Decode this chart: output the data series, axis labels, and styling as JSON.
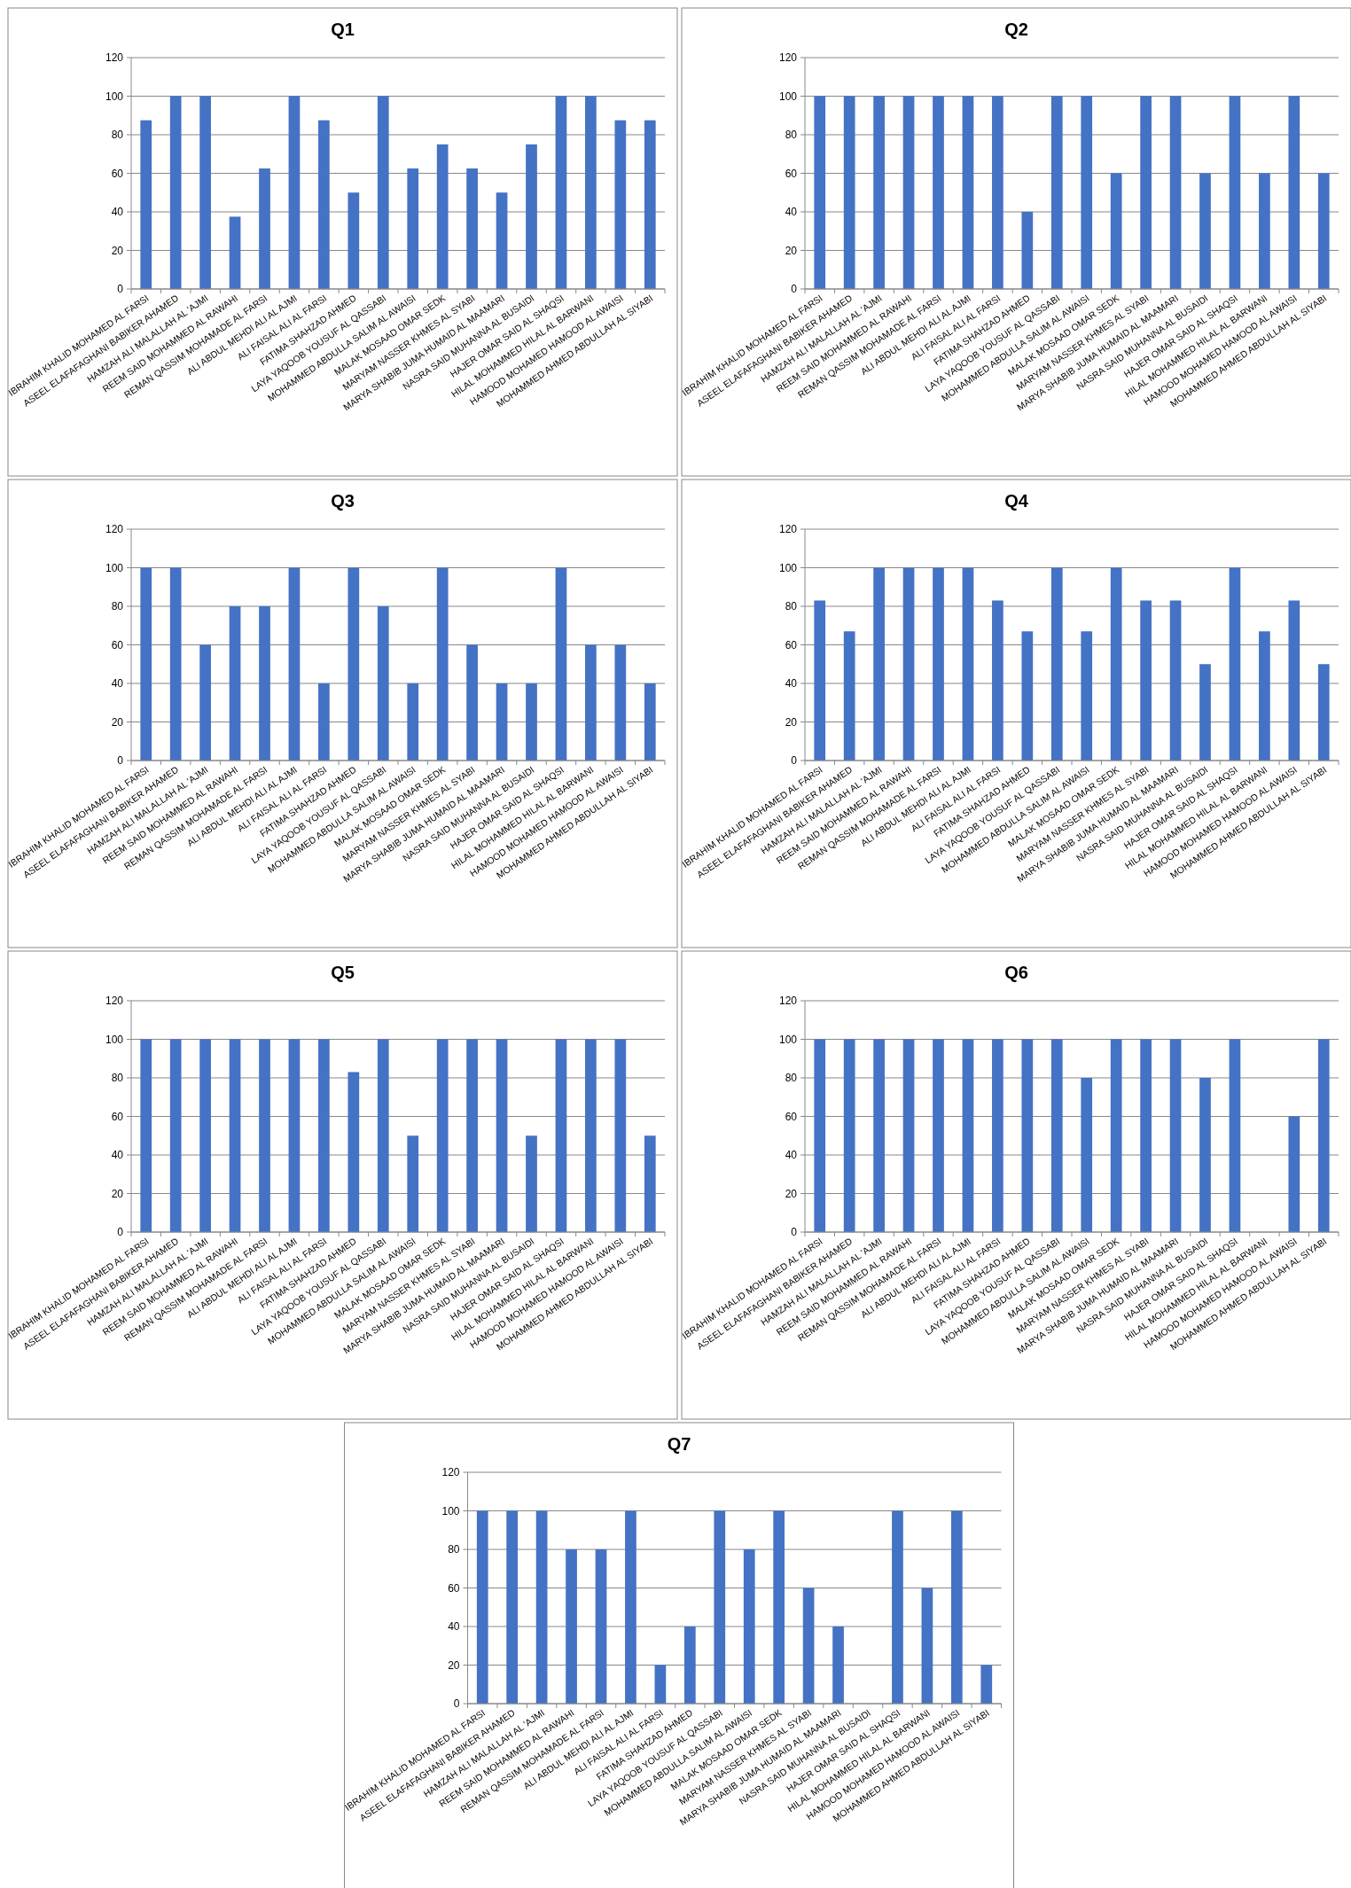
{
  "chart_data": [
    {
      "type": "bar",
      "title": "Q1",
      "categories": [
        "IBRAHIM KHALID MOHAMED AL FARSI",
        "ASEEL ELAFAFAGHANI BABIKER AHAMED",
        "HAMZAH ALI MALALLAH AL 'AJMI",
        "REEM SAID MOHAMMED AL RAWAHI",
        "REMAN QASSIM MOHAMADE AL FARSI",
        "ALI ABDUL MEHDI ALI AL AJMI",
        "ALI FAISAL ALI AL FARSI",
        "FATIMA SHAHZAD AHMED",
        "LAYA YAQOOB YOUSUF AL QASSABI",
        "MOHAMMED ABDULLA SALIM AL AWAISI",
        "MALAK MOSAAD OMAR SEDK",
        "MARYAM NASSER KHMES AL SYABI",
        "MARYA SHABIB JUMA HUMAID AL MAAMARI",
        "NASRA SAID MUHANNA AL BUSAIDI",
        "HAJER OMAR SAID AL SHAQSI",
        "HILAL MOHAMMED HILAL AL BARWANI",
        "HAMOOD MOHAMED HAMOOD AL AWAISI",
        "MOHAMMED AHMED ABDULLAH AL SIYABI"
      ],
      "values": [
        87.5,
        100,
        100,
        37.5,
        62.5,
        100,
        87.5,
        50,
        100,
        62.5,
        75,
        62.5,
        50,
        75,
        100,
        100,
        87.5,
        87.5
      ],
      "color": "#4472c4",
      "ylim": [
        0,
        120
      ],
      "yticks": [
        0,
        20,
        40,
        60,
        80,
        100,
        120
      ],
      "grid": "y"
    },
    {
      "type": "bar",
      "title": "Q2",
      "categories": [
        "IBRAHIM KHALID MOHAMED AL FARSI",
        "ASEEL ELAFAFAGHANI BABIKER AHAMED",
        "HAMZAH ALI MALALLAH AL 'AJMI",
        "REEM SAID MOHAMMED AL RAWAHI",
        "REMAN QASSIM MOHAMADE AL FARSI",
        "ALI ABDUL MEHDI ALI AL AJMI",
        "ALI FAISAL ALI AL FARSI",
        "FATIMA SHAHZAD AHMED",
        "LAYA YAQOOB YOUSUF AL QASSABI",
        "MOHAMMED ABDULLA SALIM AL AWAISI",
        "MALAK MOSAAD OMAR SEDK",
        "MARYAM NASSER KHMES AL SYABI",
        "MARYA SHABIB JUMA HUMAID AL MAAMARI",
        "NASRA SAID MUHANNA AL BUSAIDI",
        "HAJER OMAR SAID AL SHAQSI",
        "HILAL MOHAMMED HILAL AL BARWANI",
        "HAMOOD MOHAMED HAMOOD AL AWAISI",
        "MOHAMMED AHMED ABDULLAH AL SIYABI"
      ],
      "values": [
        100,
        100,
        100,
        100,
        100,
        100,
        100,
        40,
        100,
        100,
        60,
        100,
        100,
        60,
        100,
        60,
        100,
        60
      ],
      "color": "#4472c4",
      "ylim": [
        0,
        120
      ],
      "yticks": [
        0,
        20,
        40,
        60,
        80,
        100,
        120
      ],
      "grid": "y"
    },
    {
      "type": "bar",
      "title": "Q3",
      "categories": [
        "IBRAHIM KHALID MOHAMED AL FARSI",
        "ASEEL ELAFAFAGHANI BABIKER AHAMED",
        "HAMZAH ALI MALALLAH AL 'AJMI",
        "REEM SAID MOHAMMED AL RAWAHI",
        "REMAN QASSIM MOHAMADE AL FARSI",
        "ALI ABDUL MEHDI ALI AL AJMI",
        "ALI FAISAL ALI AL FARSI",
        "FATIMA SHAHZAD AHMED",
        "LAYA YAQOOB YOUSUF AL QASSABI",
        "MOHAMMED ABDULLA SALIM AL AWAISI",
        "MALAK MOSAAD OMAR SEDK",
        "MARYAM NASSER KHMES AL SYABI",
        "MARYA SHABIB JUMA HUMAID AL MAAMARI",
        "NASRA SAID MUHANNA AL BUSAIDI",
        "HAJER OMAR SAID AL SHAQSI",
        "HILAL MOHAMMED HILAL AL BARWANI",
        "HAMOOD MOHAMED HAMOOD AL AWAISI",
        "MOHAMMED AHMED ABDULLAH AL SIYABI"
      ],
      "values": [
        100,
        100,
        60,
        80,
        80,
        100,
        40,
        100,
        80,
        40,
        100,
        60,
        40,
        40,
        100,
        60,
        60,
        40
      ],
      "color": "#4472c4",
      "ylim": [
        0,
        120
      ],
      "yticks": [
        0,
        20,
        40,
        60,
        80,
        100,
        120
      ],
      "grid": "y"
    },
    {
      "type": "bar",
      "title": "Q4",
      "categories": [
        "IBRAHIM KHALID MOHAMED AL FARSI",
        "ASEEL ELAFAFAGHANI BABIKER AHAMED",
        "HAMZAH ALI MALALLAH AL 'AJMI",
        "REEM SAID MOHAMMED AL RAWAHI",
        "REMAN QASSIM MOHAMADE AL FARSI",
        "ALI ABDUL MEHDI ALI AL AJMI",
        "ALI FAISAL ALI AL FARSI",
        "FATIMA SHAHZAD AHMED",
        "LAYA YAQOOB YOUSUF AL QASSABI",
        "MOHAMMED ABDULLA SALIM AL AWAISI",
        "MALAK MOSAAD OMAR SEDK",
        "MARYAM NASSER KHMES AL SYABI",
        "MARYA SHABIB JUMA HUMAID AL MAAMARI",
        "NASRA SAID MUHANNA AL BUSAIDI",
        "HAJER OMAR SAID AL SHAQSI",
        "HILAL MOHAMMED HILAL AL BARWANI",
        "HAMOOD MOHAMED HAMOOD AL AWAISI",
        "MOHAMMED AHMED ABDULLAH AL SIYABI"
      ],
      "values": [
        83,
        67,
        100,
        100,
        100,
        100,
        83,
        67,
        100,
        67,
        100,
        83,
        83,
        50,
        100,
        67,
        83,
        50
      ],
      "color": "#4472c4",
      "ylim": [
        0,
        120
      ],
      "yticks": [
        0,
        20,
        40,
        60,
        80,
        100,
        120
      ],
      "grid": "y"
    },
    {
      "type": "bar",
      "title": "Q5",
      "categories": [
        "IBRAHIM KHALID MOHAMED AL FARSI",
        "ASEEL ELAFAFAGHANI BABIKER AHAMED",
        "HAMZAH ALI MALALLAH AL 'AJMI",
        "REEM SAID MOHAMMED AL RAWAHI",
        "REMAN QASSIM MOHAMADE AL FARSI",
        "ALI ABDUL MEHDI ALI AL AJMI",
        "ALI FAISAL ALI AL FARSI",
        "FATIMA SHAHZAD AHMED",
        "LAYA YAQOOB YOUSUF AL QASSABI",
        "MOHAMMED ABDULLA SALIM AL AWAISI",
        "MALAK MOSAAD OMAR SEDK",
        "MARYAM NASSER KHMES AL SYABI",
        "MARYA SHABIB JUMA HUMAID AL MAAMARI",
        "NASRA SAID MUHANNA AL BUSAIDI",
        "HAJER OMAR SAID AL SHAQSI",
        "HILAL MOHAMMED HILAL AL BARWANI",
        "HAMOOD MOHAMED HAMOOD AL AWAISI",
        "MOHAMMED AHMED ABDULLAH AL SIYABI"
      ],
      "values": [
        100,
        100,
        100,
        100,
        100,
        100,
        100,
        83,
        100,
        50,
        100,
        100,
        100,
        50,
        100,
        100,
        100,
        50
      ],
      "color": "#4472c4",
      "ylim": [
        0,
        120
      ],
      "yticks": [
        0,
        20,
        40,
        60,
        80,
        100,
        120
      ],
      "grid": "y"
    },
    {
      "type": "bar",
      "title": "Q6",
      "categories": [
        "IBRAHIM KHALID MOHAMED AL FARSI",
        "ASEEL ELAFAFAGHANI BABIKER AHAMED",
        "HAMZAH ALI MALALLAH AL 'AJMI",
        "REEM SAID MOHAMMED AL RAWAHI",
        "REMAN QASSIM MOHAMADE AL FARSI",
        "ALI ABDUL MEHDI ALI AL AJMI",
        "ALI FAISAL ALI AL FARSI",
        "FATIMA SHAHZAD AHMED",
        "LAYA YAQOOB YOUSUF AL QASSABI",
        "MOHAMMED ABDULLA SALIM AL AWAISI",
        "MALAK MOSAAD OMAR SEDK",
        "MARYAM NASSER KHMES AL SYABI",
        "MARYA SHABIB JUMA HUMAID AL MAAMARI",
        "NASRA SAID MUHANNA AL BUSAIDI",
        "HAJER OMAR SAID AL SHAQSI",
        "HILAL MOHAMMED HILAL AL BARWANI",
        "HAMOOD MOHAMED HAMOOD AL AWAISI",
        "MOHAMMED AHMED ABDULLAH AL SIYABI"
      ],
      "values": [
        100,
        100,
        100,
        100,
        100,
        100,
        100,
        100,
        100,
        80,
        100,
        100,
        100,
        80,
        100,
        0,
        60,
        100
      ],
      "color": "#4472c4",
      "ylim": [
        0,
        120
      ],
      "yticks": [
        0,
        20,
        40,
        60,
        80,
        100,
        120
      ],
      "grid": "y"
    },
    {
      "type": "bar",
      "title": "Q7",
      "categories": [
        "IBRAHIM KHALID MOHAMED AL FARSI",
        "ASEEL ELAFAFAGHANI BABIKER AHAMED",
        "HAMZAH ALI MALALLAH AL 'AJMI",
        "REEM SAID MOHAMMED AL RAWAHI",
        "REMAN QASSIM MOHAMADE AL FARSI",
        "ALI ABDUL MEHDI ALI AL AJMI",
        "ALI FAISAL ALI AL FARSI",
        "FATIMA SHAHZAD AHMED",
        "LAYA YAQOOB YOUSUF AL QASSABI",
        "MOHAMMED ABDULLA SALIM AL AWAISI",
        "MALAK MOSAAD OMAR SEDK",
        "MARYAM NASSER KHMES AL SYABI",
        "MARYA SHABIB JUMA HUMAID AL MAAMARI",
        "NASRA SAID MUHANNA AL BUSAIDI",
        "HAJER OMAR SAID AL SHAQSI",
        "HILAL MOHAMMED HILAL AL BARWANI",
        "HAMOOD MOHAMED HAMOOD AL AWAISI",
        "MOHAMMED AHMED ABDULLAH AL SIYABI"
      ],
      "values": [
        100,
        100,
        100,
        80,
        80,
        100,
        20,
        40,
        100,
        80,
        100,
        60,
        40,
        0,
        100,
        60,
        100,
        20
      ],
      "color": "#4472c4",
      "ylim": [
        0,
        120
      ],
      "yticks": [
        0,
        20,
        40,
        60,
        80,
        100,
        120
      ],
      "grid": "y"
    }
  ]
}
